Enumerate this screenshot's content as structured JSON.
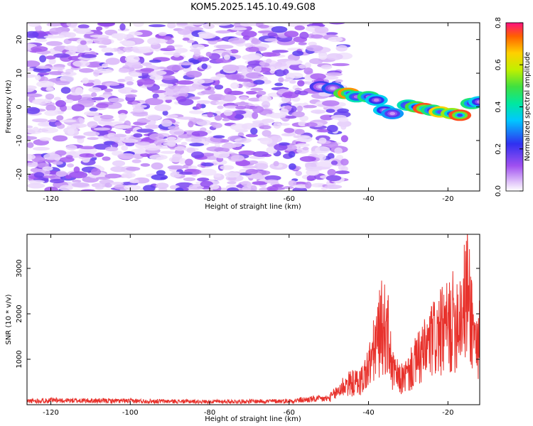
{
  "title": "KOM5.2025.145.10.49.G08",
  "chart_data": [
    {
      "type": "heatmap",
      "xlabel": "Height of straight line (km)",
      "ylabel": "Frequency (Hz)",
      "xlim": [
        -126,
        -12
      ],
      "ylim": [
        -25,
        25
      ],
      "xticks": [
        -120,
        -100,
        -80,
        -60,
        -40,
        -20
      ],
      "yticks": [
        -20,
        -10,
        0,
        10,
        20
      ],
      "colorbar": {
        "label": "Normalized spectral amplitude",
        "range": [
          0.0,
          0.8
        ],
        "ticks": [
          0.0,
          0.2,
          0.4,
          0.6,
          0.8
        ]
      },
      "noise_region_x": [
        -126,
        -48
      ],
      "ridge": [
        {
          "x": -52,
          "y": 6.0,
          "amp": 0.15
        },
        {
          "x": -49,
          "y": 5.5,
          "amp": 0.2
        },
        {
          "x": -46,
          "y": 4.0,
          "amp": 0.45
        },
        {
          "x": -45,
          "y": 4.0,
          "amp": 0.65
        },
        {
          "x": -43,
          "y": 3.0,
          "amp": 0.35
        },
        {
          "x": -40,
          "y": 3.0,
          "amp": 0.4
        },
        {
          "x": -38,
          "y": 2.0,
          "amp": 0.3
        },
        {
          "x": -36,
          "y": -1.0,
          "amp": 0.3
        },
        {
          "x": -34,
          "y": -2.0,
          "amp": 0.25
        },
        {
          "x": -30,
          "y": 0.5,
          "amp": 0.35
        },
        {
          "x": -28,
          "y": 0.0,
          "amp": 0.45
        },
        {
          "x": -26,
          "y": -0.5,
          "amp": 0.7
        },
        {
          "x": -24,
          "y": -1.0,
          "amp": 0.4
        },
        {
          "x": -22,
          "y": -1.5,
          "amp": 0.6
        },
        {
          "x": -19,
          "y": -2.0,
          "amp": 0.5
        },
        {
          "x": -17,
          "y": -2.5,
          "amp": 0.7
        },
        {
          "x": -14,
          "y": 1.0,
          "amp": 0.4
        },
        {
          "x": -12,
          "y": 1.5,
          "amp": 0.3
        }
      ]
    },
    {
      "type": "line",
      "xlabel": "Height of straight line (km)",
      "ylabel": "SNR (10 * v/v)",
      "xlim": [
        -126,
        -12
      ],
      "ylim": [
        0,
        3750
      ],
      "xticks": [
        -120,
        -100,
        -80,
        -60,
        -40,
        -20
      ],
      "yticks": [
        1000,
        2000,
        3000
      ],
      "color": "#e8322c",
      "series": [
        {
          "x": [
            -126,
            -120,
            -110,
            -100,
            -90,
            -80,
            -70,
            -60,
            -55,
            -50,
            -48,
            -46,
            -44,
            -42,
            -40,
            -38,
            -36.5,
            -35,
            -34,
            -32,
            -30,
            -28,
            -26,
            -24,
            -22,
            -20,
            -18,
            -16,
            -15,
            -14,
            -13,
            -12
          ],
          "y": [
            120,
            140,
            130,
            120,
            110,
            100,
            110,
            120,
            170,
            200,
            400,
            650,
            700,
            750,
            1200,
            2000,
            2600,
            2200,
            1100,
            800,
            1000,
            1400,
            1700,
            2100,
            2300,
            2500,
            2800,
            3200,
            3750,
            2800,
            2000,
            2100
          ]
        }
      ]
    }
  ]
}
